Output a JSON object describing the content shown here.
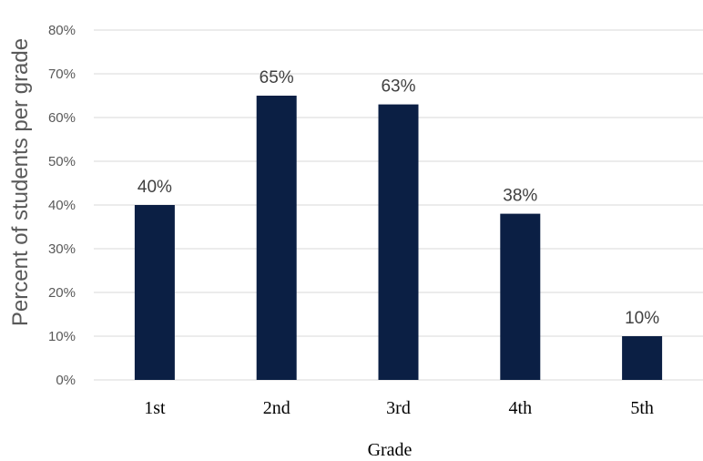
{
  "chart_data": {
    "type": "bar",
    "title": "",
    "xlabel": "Grade",
    "ylabel": "Percent of students per grade",
    "categories": [
      "1st",
      "2nd",
      "3rd",
      "4th",
      "5th"
    ],
    "values": [
      40,
      65,
      63,
      38,
      10
    ],
    "data_labels": [
      "40%",
      "65%",
      "63%",
      "38%",
      "10%"
    ],
    "ylim": [
      0,
      80
    ],
    "yticks": [
      0,
      10,
      20,
      30,
      40,
      50,
      60,
      70,
      80
    ],
    "ytick_labels": [
      "0%",
      "10%",
      "20%",
      "30%",
      "40%",
      "50%",
      "60%",
      "70%",
      "80%"
    ],
    "grid": true,
    "legend": "none",
    "bar_color": "#0b1f44"
  }
}
